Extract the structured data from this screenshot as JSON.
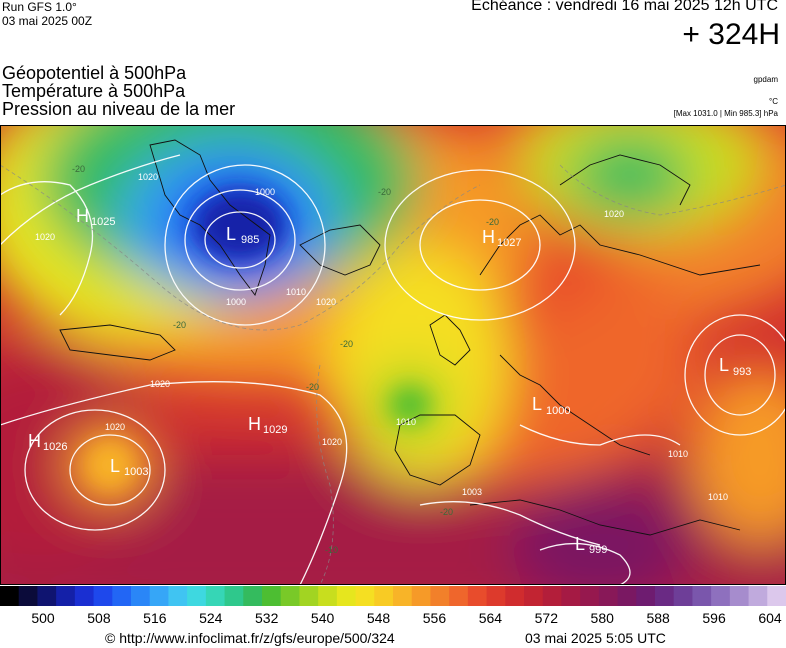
{
  "header": {
    "run": "Run GFS 1.0°",
    "run_date": "03 mai 2025 00Z",
    "valid_time": "Echéance : vendredi 16 mai 2025 12h UTC",
    "lead": "+ 324H"
  },
  "titles": [
    "Géopotentiel à 500hPa",
    "Température à 500hPa",
    "Pression au niveau de la mer"
  ],
  "units": {
    "geopotential": "gpdam",
    "temperature": "°C",
    "pressure_range": "[Max 1031.0 | Min 985.3] hPa"
  },
  "pressure_centers": [
    {
      "type": "H",
      "value": "1025"
    },
    {
      "type": "L",
      "value": "985"
    },
    {
      "type": "H",
      "value": "1029"
    },
    {
      "type": "H",
      "value": "1026"
    },
    {
      "type": "L",
      "value": "1003"
    },
    {
      "type": "H",
      "value": "1027"
    },
    {
      "type": "L",
      "value": "993"
    },
    {
      "type": "L",
      "value": "1000"
    },
    {
      "type": "L",
      "value": "999"
    }
  ],
  "isobar_labels": [
    "1020",
    "1020",
    "1000",
    "1000",
    "1010",
    "1020",
    "1020",
    "1020",
    "1020",
    "1010",
    "1010",
    "1020",
    "1003",
    "1010"
  ],
  "temperature_labels": [
    "-20",
    "-20",
    "-20",
    "-20",
    "-20",
    "-20",
    "-20",
    "-10"
  ],
  "legend": {
    "ticks": [
      "500",
      "508",
      "516",
      "524",
      "532",
      "540",
      "548",
      "556",
      "564",
      "572",
      "580",
      "588",
      "596",
      "604"
    ],
    "colors": [
      "#000000",
      "#0b0b3a",
      "#0f1470",
      "#1420a8",
      "#1a2fd2",
      "#1e48ec",
      "#2266f5",
      "#2a86f7",
      "#36a6f7",
      "#40c4f2",
      "#3ed8e0",
      "#36d6b6",
      "#2fc88c",
      "#34bb5e",
      "#4dbe32",
      "#79c928",
      "#a2d422",
      "#c8de1e",
      "#e6e61e",
      "#f5df22",
      "#f8cb24",
      "#f8b428",
      "#f69a28",
      "#f2802a",
      "#ef662c",
      "#e84c2c",
      "#dd3a2c",
      "#d02c2e",
      "#c22432",
      "#b31e3a",
      "#a51a44",
      "#96184e",
      "#881858",
      "#7a1862",
      "#6e1c70",
      "#6a2a84",
      "#6e3e98",
      "#7a56ac",
      "#8e70be",
      "#a68ccd",
      "#c0aadd",
      "#dcc8ec"
    ]
  },
  "footer": {
    "url": "© http://www.infoclimat.fr/z/gfs/europe/500/324",
    "generated": "03 mai 2025  5:05 UTC"
  }
}
